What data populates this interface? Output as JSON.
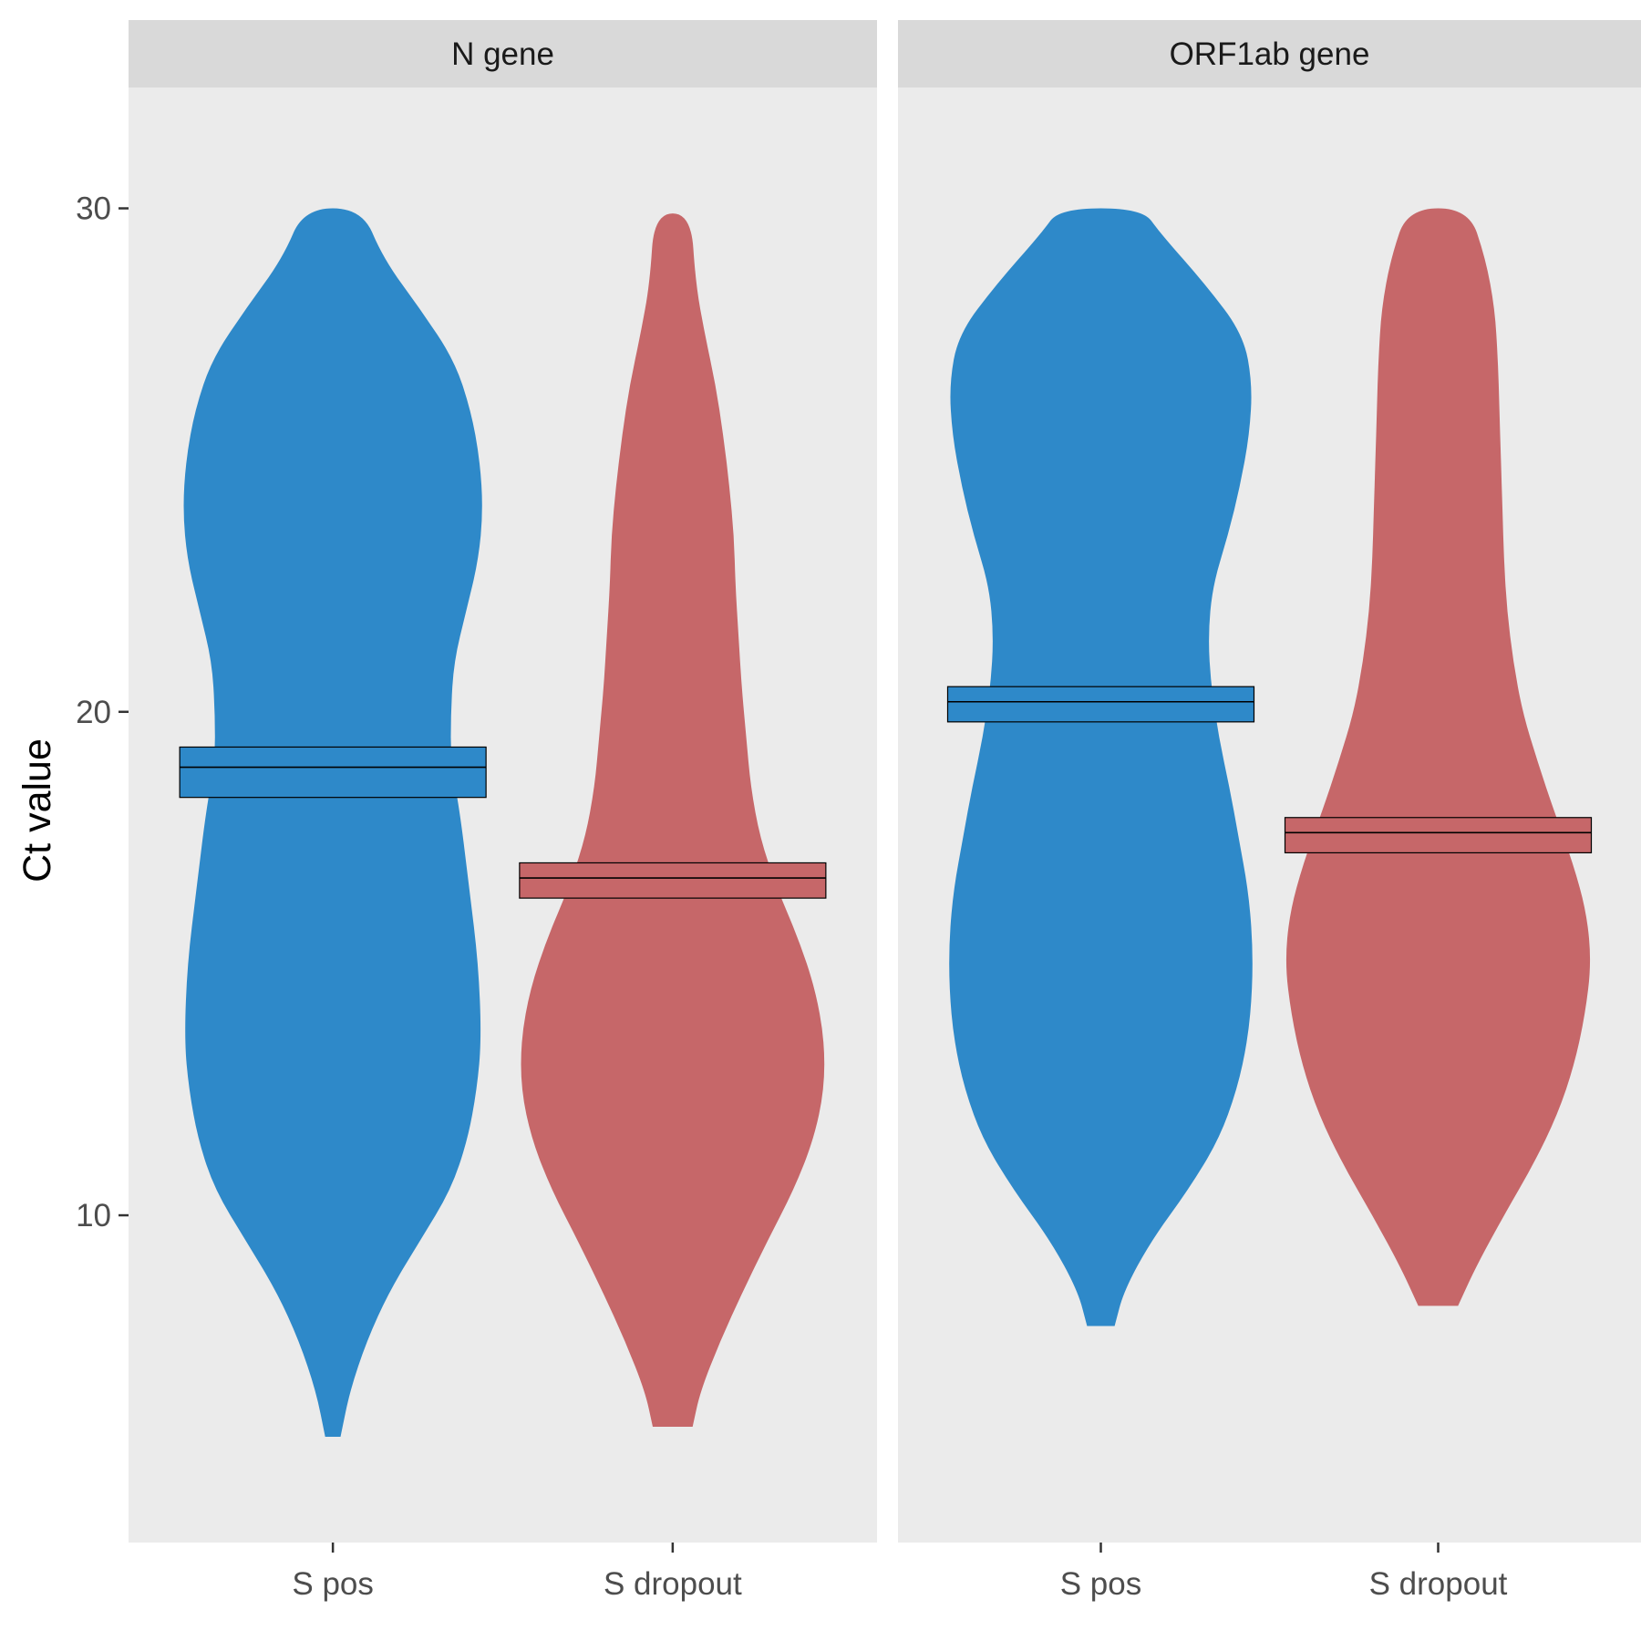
{
  "chart_data": {
    "type": "violin",
    "ylabel": "Ct value",
    "ylim": [
      3.5,
      32.4
    ],
    "yticks": [
      10,
      20,
      30
    ],
    "categories": [
      "S pos",
      "S dropout"
    ],
    "colors": {
      "S pos": "#2e89c9",
      "S dropout": "#c66769"
    },
    "panel_background": "#ebebeb",
    "strip_background": "#d9d9d9",
    "grid": false,
    "legend": "none",
    "panels": [
      {
        "title": "N gene",
        "violins": [
          {
            "category": "S pos",
            "min": 5.6,
            "max": 30.0,
            "median": 18.9,
            "ci_low": 18.3,
            "ci_high": 19.3,
            "profile": [
              [
                5.6,
                0.05
              ],
              [
                6.5,
                0.11
              ],
              [
                7.5,
                0.22
              ],
              [
                8.5,
                0.37
              ],
              [
                9.5,
                0.57
              ],
              [
                10.5,
                0.77
              ],
              [
                11.5,
                0.88
              ],
              [
                12.5,
                0.94
              ],
              [
                13.5,
                0.97
              ],
              [
                15.0,
                0.95
              ],
              [
                16.5,
                0.89
              ],
              [
                18.0,
                0.83
              ],
              [
                19.0,
                0.77
              ],
              [
                20.0,
                0.77
              ],
              [
                21.0,
                0.79
              ],
              [
                22.0,
                0.87
              ],
              [
                23.0,
                0.95
              ],
              [
                24.0,
                0.98
              ],
              [
                25.0,
                0.96
              ],
              [
                26.0,
                0.9
              ],
              [
                27.0,
                0.79
              ],
              [
                28.0,
                0.57
              ],
              [
                29.0,
                0.33
              ],
              [
                30.0,
                0.19
              ]
            ]
          },
          {
            "category": "S dropout",
            "min": 5.8,
            "max": 29.9,
            "median": 16.7,
            "ci_low": 16.3,
            "ci_high": 17.0,
            "profile": [
              [
                5.8,
                0.13
              ],
              [
                6.5,
                0.18
              ],
              [
                7.5,
                0.31
              ],
              [
                8.5,
                0.46
              ],
              [
                9.5,
                0.62
              ],
              [
                10.5,
                0.79
              ],
              [
                11.5,
                0.92
              ],
              [
                12.5,
                0.99
              ],
              [
                13.5,
                0.99
              ],
              [
                14.5,
                0.93
              ],
              [
                15.5,
                0.82
              ],
              [
                16.5,
                0.68
              ],
              [
                17.5,
                0.57
              ],
              [
                18.5,
                0.51
              ],
              [
                19.5,
                0.48
              ],
              [
                20.5,
                0.45
              ],
              [
                21.5,
                0.43
              ],
              [
                22.5,
                0.41
              ],
              [
                23.5,
                0.4
              ],
              [
                24.5,
                0.37
              ],
              [
                25.5,
                0.33
              ],
              [
                26.5,
                0.28
              ],
              [
                27.5,
                0.21
              ],
              [
                28.5,
                0.15
              ],
              [
                29.9,
                0.12
              ]
            ]
          }
        ]
      },
      {
        "title": "ORF1ab gene",
        "violins": [
          {
            "category": "S pos",
            "min": 7.8,
            "max": 30.0,
            "median": 20.2,
            "ci_low": 19.8,
            "ci_high": 20.5,
            "profile": [
              [
                7.8,
                0.09
              ],
              [
                8.5,
                0.15
              ],
              [
                9.5,
                0.33
              ],
              [
                10.5,
                0.57
              ],
              [
                11.5,
                0.77
              ],
              [
                12.5,
                0.89
              ],
              [
                13.5,
                0.96
              ],
              [
                14.5,
                0.99
              ],
              [
                15.5,
                0.99
              ],
              [
                16.5,
                0.96
              ],
              [
                17.5,
                0.9
              ],
              [
                18.5,
                0.84
              ],
              [
                19.5,
                0.77
              ],
              [
                20.5,
                0.72
              ],
              [
                21.5,
                0.7
              ],
              [
                22.5,
                0.73
              ],
              [
                23.5,
                0.83
              ],
              [
                24.5,
                0.91
              ],
              [
                25.5,
                0.97
              ],
              [
                26.5,
                0.99
              ],
              [
                27.5,
                0.93
              ],
              [
                28.5,
                0.68
              ],
              [
                29.5,
                0.39
              ],
              [
                30.0,
                0.27
              ]
            ]
          },
          {
            "category": "S dropout",
            "min": 8.2,
            "max": 30.0,
            "median": 17.6,
            "ci_low": 17.2,
            "ci_high": 17.9,
            "profile": [
              [
                8.2,
                0.13
              ],
              [
                9.0,
                0.25
              ],
              [
                10.0,
                0.43
              ],
              [
                11.0,
                0.62
              ],
              [
                12.0,
                0.78
              ],
              [
                13.0,
                0.89
              ],
              [
                14.0,
                0.96
              ],
              [
                15.0,
                1.0
              ],
              [
                16.0,
                0.97
              ],
              [
                17.0,
                0.88
              ],
              [
                18.0,
                0.76
              ],
              [
                19.0,
                0.65
              ],
              [
                20.0,
                0.55
              ],
              [
                21.0,
                0.49
              ],
              [
                22.0,
                0.45
              ],
              [
                23.0,
                0.43
              ],
              [
                24.0,
                0.42
              ],
              [
                25.0,
                0.41
              ],
              [
                26.0,
                0.4
              ],
              [
                27.0,
                0.39
              ],
              [
                28.0,
                0.37
              ],
              [
                29.0,
                0.31
              ],
              [
                30.0,
                0.2
              ]
            ]
          }
        ]
      }
    ]
  }
}
